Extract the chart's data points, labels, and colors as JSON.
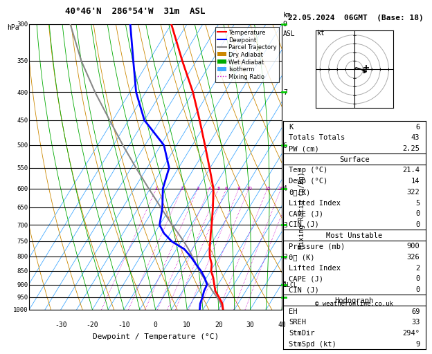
{
  "title": "40°46'N  286°54'W  31m  ASL",
  "date_title": "22.05.2024  06GMT  (Base: 18)",
  "xlabel": "Dewpoint / Temperature (°C)",
  "temp_profile_p": [
    1000,
    975,
    950,
    925,
    900,
    875,
    850,
    825,
    800,
    775,
    750,
    725,
    700,
    650,
    600,
    550,
    500,
    450,
    400,
    350,
    300
  ],
  "temp_profile_t": [
    21.4,
    20.0,
    17.8,
    15.4,
    13.8,
    12.2,
    10.2,
    9.0,
    7.0,
    5.5,
    4.2,
    2.8,
    1.5,
    -1.5,
    -5.0,
    -10.2,
    -16.0,
    -22.5,
    -30.0,
    -39.5,
    -50.0
  ],
  "dewp_profile_p": [
    1000,
    975,
    950,
    925,
    900,
    875,
    850,
    825,
    800,
    775,
    750,
    725,
    700,
    650,
    600,
    550,
    500,
    450,
    400,
    350,
    300
  ],
  "dewp_profile_t": [
    14.0,
    13.0,
    12.5,
    11.8,
    11.5,
    9.5,
    7.0,
    4.0,
    1.0,
    -2.5,
    -8.0,
    -12.0,
    -15.0,
    -17.5,
    -21.0,
    -23.0,
    -29.0,
    -40.0,
    -48.0,
    -55.0,
    -63.0
  ],
  "parcel_profile_p": [
    1000,
    975,
    950,
    925,
    900,
    875,
    850,
    825,
    800,
    775,
    750,
    725,
    700,
    650,
    600,
    550,
    500,
    450,
    400,
    350,
    300
  ],
  "parcel_profile_t": [
    21.4,
    19.5,
    17.2,
    14.5,
    12.0,
    9.2,
    6.5,
    4.0,
    1.5,
    -1.2,
    -4.2,
    -7.5,
    -11.0,
    -18.0,
    -25.5,
    -33.5,
    -42.0,
    -51.0,
    -61.0,
    -71.5,
    -82.0
  ],
  "dry_adiabat_color": "#cc8800",
  "wet_adiabat_color": "#00aa00",
  "isotherm_color": "#44aaff",
  "mixing_ratio_color": "#cc00cc",
  "temp_color": "#ff0000",
  "dewpoint_color": "#0000ff",
  "parcel_color": "#888888",
  "lcl_pressure": 900,
  "stats": {
    "K": 6,
    "Totals Totals": 43,
    "PW (cm)": 2.25,
    "Surface": {
      "Temp (C)": 21.4,
      "Dewp (C)": 14,
      "theta_e (K)": 322,
      "Lifted Index": 5,
      "CAPE (J)": 0,
      "CIN (J)": 0
    },
    "Most Unstable": {
      "Pressure (mb)": 900,
      "theta_e (K)": 326,
      "Lifted Index": 2,
      "CAPE (J)": 0,
      "CIN (J)": 0
    },
    "Hodograph": {
      "EH": 69,
      "SREH": 33,
      "StmDir": 294,
      "StmSpd (kt)": 9
    }
  }
}
